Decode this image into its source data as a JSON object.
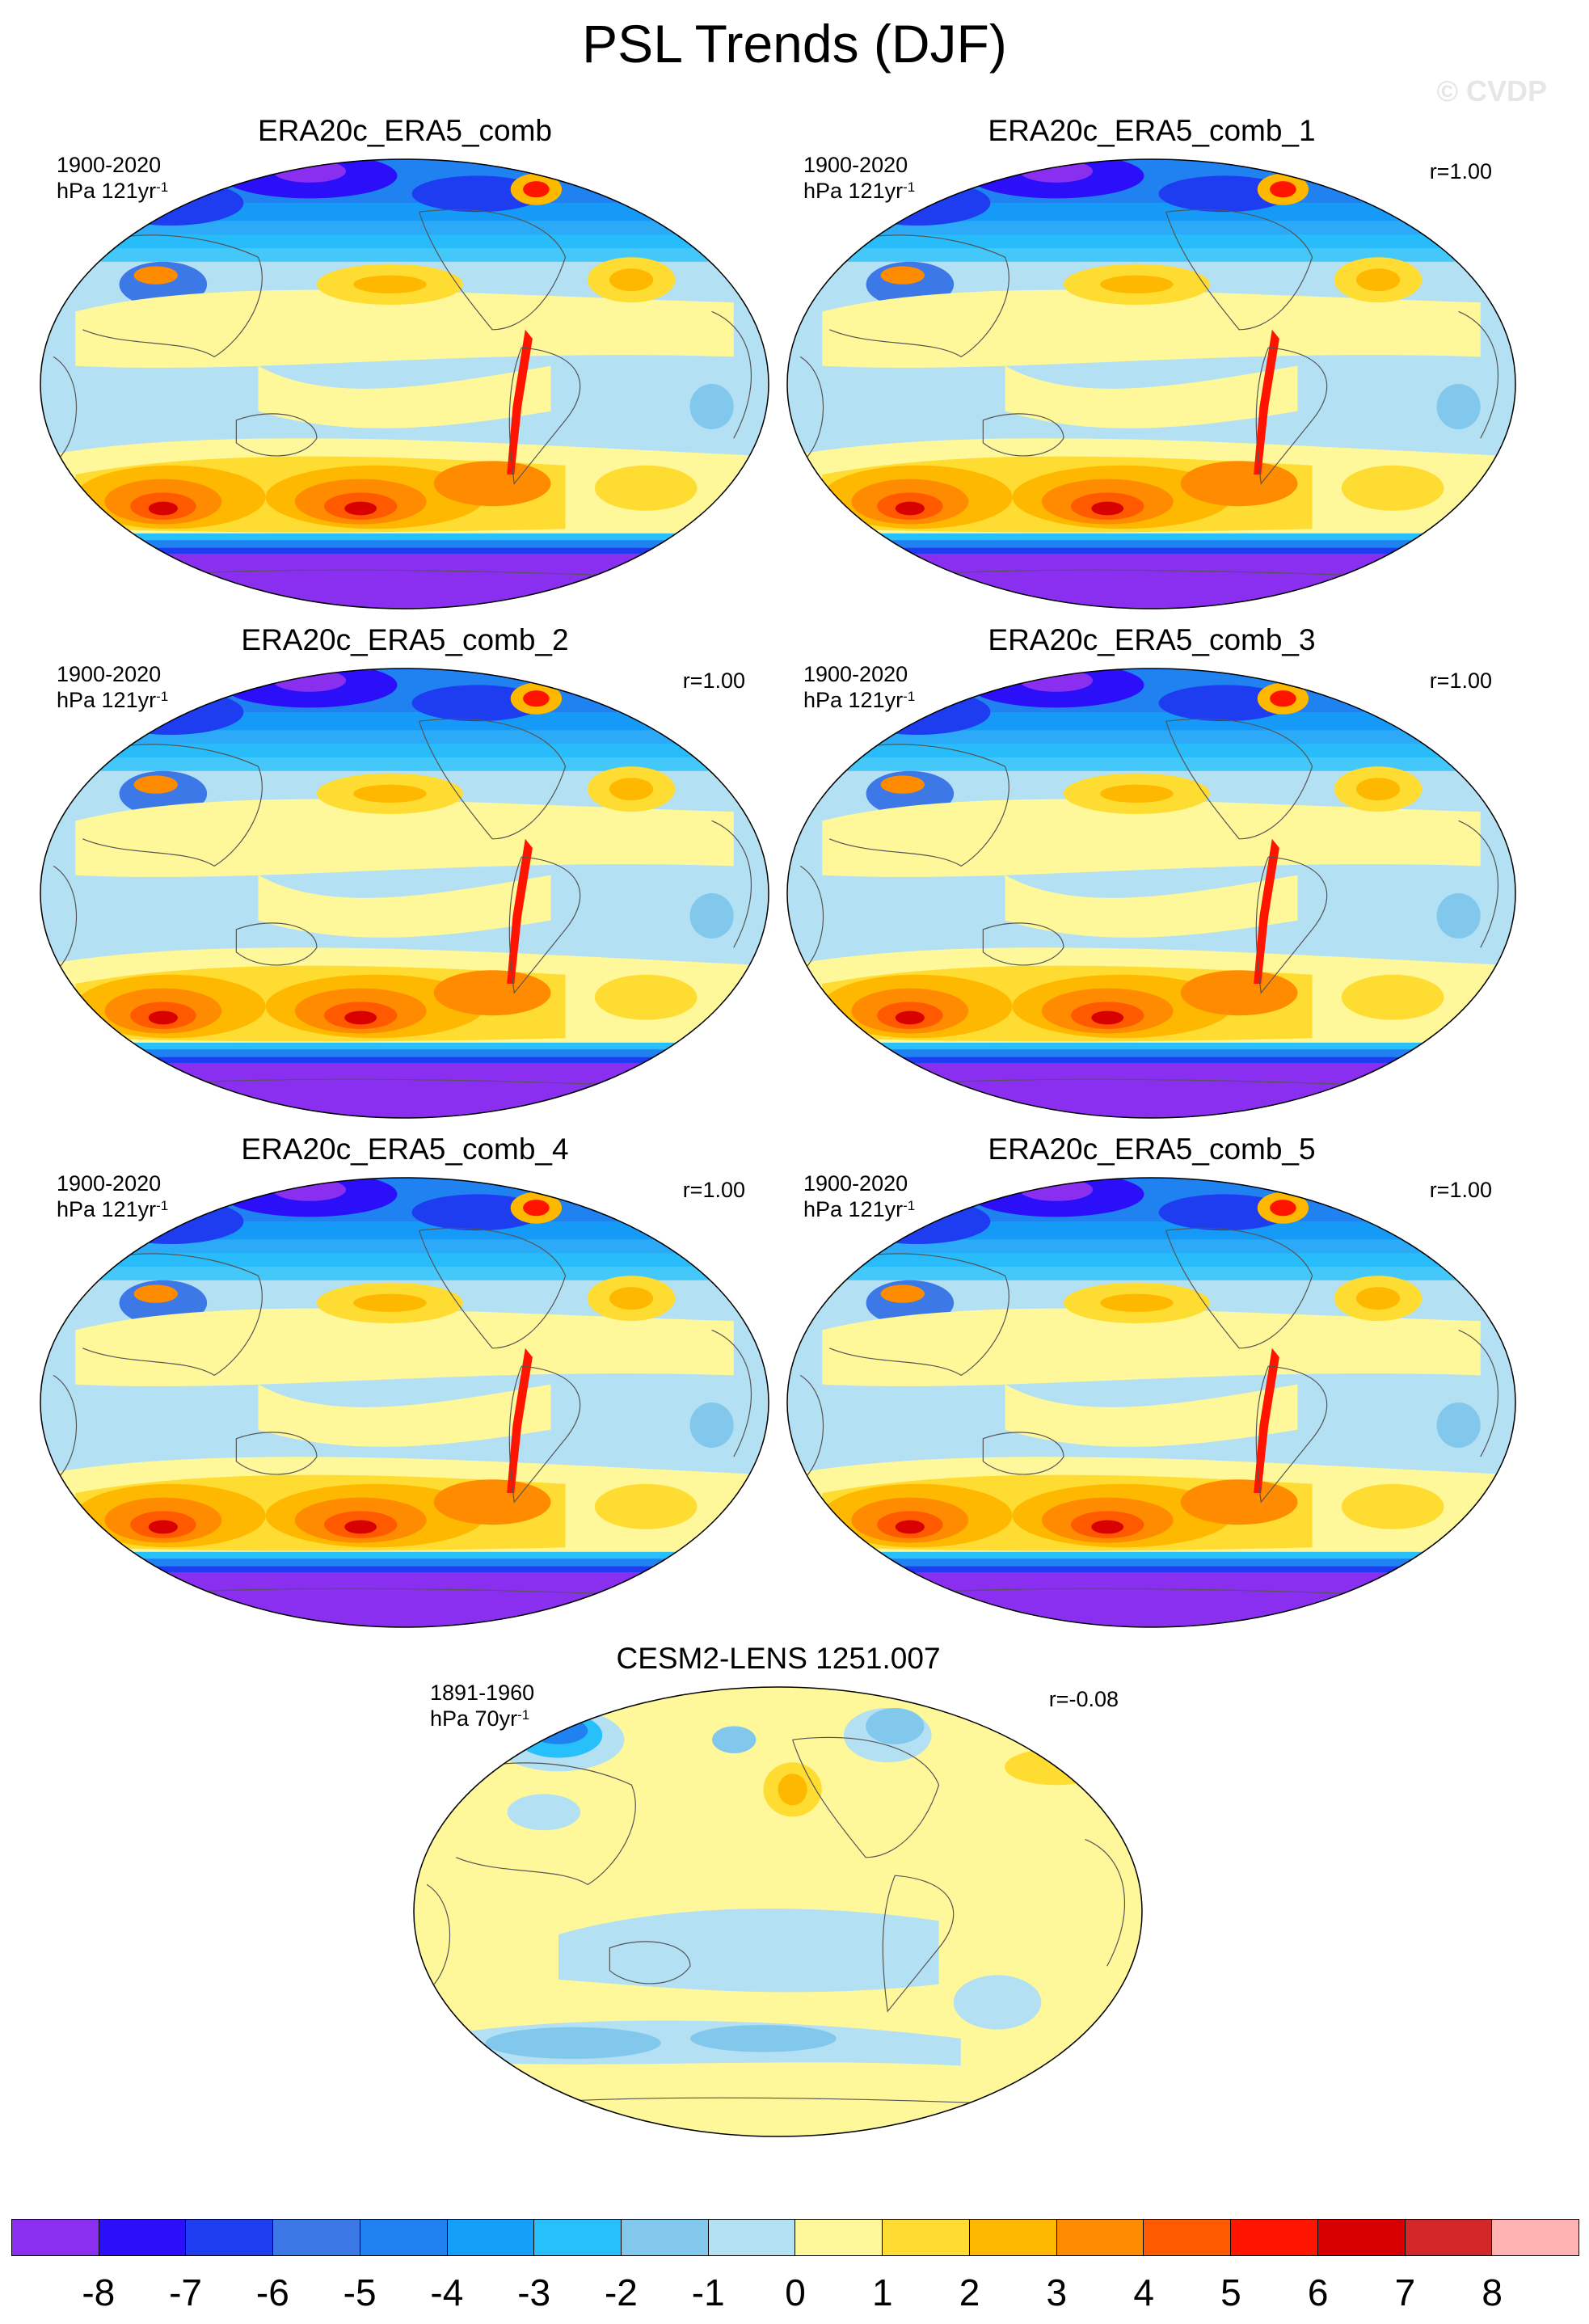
{
  "figure": {
    "title": "PSL Trends (DJF)",
    "watermark": "© CVDP"
  },
  "panels": [
    {
      "title": "ERA20c_ERA5_comb",
      "period": "1900-2020",
      "units": "hPa 121yr",
      "units_exp": "-1",
      "corr": "",
      "variant": "obs"
    },
    {
      "title": "ERA20c_ERA5_comb_1",
      "period": "1900-2020",
      "units": "hPa 121yr",
      "units_exp": "-1",
      "corr": "r=1.00",
      "variant": "obs"
    },
    {
      "title": "ERA20c_ERA5_comb_2",
      "period": "1900-2020",
      "units": "hPa 121yr",
      "units_exp": "-1",
      "corr": "r=1.00",
      "variant": "obs"
    },
    {
      "title": "ERA20c_ERA5_comb_3",
      "period": "1900-2020",
      "units": "hPa 121yr",
      "units_exp": "-1",
      "corr": "r=1.00",
      "variant": "obs"
    },
    {
      "title": "ERA20c_ERA5_comb_4",
      "period": "1900-2020",
      "units": "hPa 121yr",
      "units_exp": "-1",
      "corr": "r=1.00",
      "variant": "obs"
    },
    {
      "title": "ERA20c_ERA5_comb_5",
      "period": "1900-2020",
      "units": "hPa 121yr",
      "units_exp": "-1",
      "corr": "r=1.00",
      "variant": "obs"
    },
    {
      "title": "CESM2-LENS 1251.007",
      "period": "1891-1960",
      "units": "hPa 70yr",
      "units_exp": "-1",
      "corr": "r=-0.08",
      "variant": "model"
    }
  ],
  "colorbar": {
    "colors": [
      "#8a2ff0",
      "#2a0ff8",
      "#1e3cf0",
      "#3c78e6",
      "#1f82f0",
      "#14a0f8",
      "#28c0fa",
      "#82c8ec",
      "#b4e0f4",
      "#fff89a",
      "#ffdc32",
      "#ffb800",
      "#ff8c00",
      "#ff5a00",
      "#ff1400",
      "#d80000",
      "#d22828",
      "#ffb4b4"
    ],
    "labels": [
      "-8",
      "-7",
      "-6",
      "-5",
      "-4",
      "-3",
      "-2",
      "-1",
      "0",
      "1",
      "2",
      "3",
      "4",
      "5",
      "6",
      "7",
      "8"
    ]
  }
}
